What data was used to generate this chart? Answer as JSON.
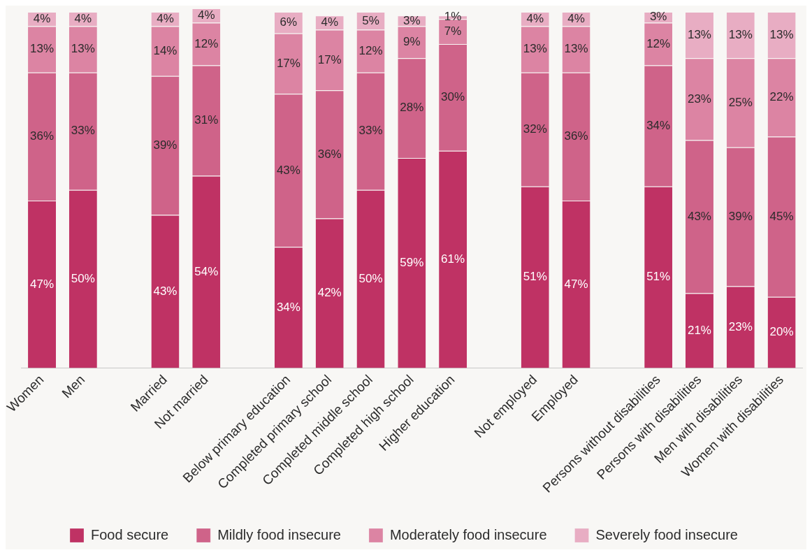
{
  "chart_data": {
    "type": "bar",
    "stacked": true,
    "legend": "bottom",
    "grid": false,
    "tick_labels": "x",
    "categories": [
      "Women",
      "Men",
      null,
      "Married",
      "Not married",
      null,
      "Below primary education",
      "Completed primary school",
      "Completed middle school",
      "Completed high school",
      "Higher education",
      null,
      "Not employed",
      "Employed",
      null,
      "Persons without disabilities",
      "Persons with disabilities",
      "Men with disabilities",
      "Women with disabilities"
    ],
    "series": [
      {
        "name": "Food secure",
        "color": "#bf3264",
        "values": [
          47,
          50,
          null,
          43,
          54,
          null,
          34,
          42,
          50,
          59,
          61,
          null,
          51,
          47,
          null,
          51,
          21,
          23,
          20
        ],
        "value_labels": [
          "47%",
          "50%",
          null,
          "43%",
          "54%",
          null,
          "34%",
          "42%",
          "50%",
          "59%",
          "61%",
          null,
          "51%",
          "47%",
          null,
          "51%",
          "21%",
          "23%",
          "20%"
        ]
      },
      {
        "name": "Mildly food insecure",
        "color": "#cf6389",
        "values": [
          36,
          33,
          null,
          39,
          31,
          null,
          43,
          36,
          33,
          28,
          30,
          null,
          32,
          36,
          null,
          34,
          43,
          39,
          45
        ],
        "value_labels": [
          "36%",
          "33%",
          null,
          "39%",
          "31%",
          null,
          "43%",
          "36%",
          "33%",
          "28%",
          "30%",
          null,
          "32%",
          "36%",
          null,
          "34%",
          "43%",
          "39%",
          "45%"
        ]
      },
      {
        "name": "Moderately food insecure",
        "color": "#dc84a3",
        "values": [
          13,
          13,
          null,
          14,
          12,
          null,
          17,
          17,
          12,
          9,
          7,
          null,
          13,
          13,
          null,
          12,
          23,
          25,
          22
        ],
        "value_labels": [
          "13%",
          "13%",
          null,
          "14%",
          "12%",
          null,
          "17%",
          "17%",
          "12%",
          "9%",
          "7%",
          null,
          "13%",
          "13%",
          null,
          "12%",
          "23%",
          "25%",
          "22%"
        ]
      },
      {
        "name": "Severely food insecure",
        "color": "#e8adc3",
        "values": [
          4,
          4,
          null,
          4,
          4,
          null,
          6,
          4,
          5,
          3,
          1,
          null,
          4,
          4,
          null,
          3,
          13,
          13,
          13
        ],
        "value_labels": [
          "4%",
          "4%",
          null,
          "4%",
          "4%",
          null,
          "6%",
          "4%",
          "5%",
          "3%",
          "1%",
          null,
          "4%",
          "4%",
          null,
          "3%",
          "13%",
          "13%",
          "13%"
        ]
      }
    ]
  }
}
